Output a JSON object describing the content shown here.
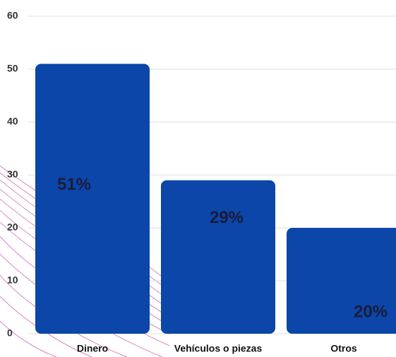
{
  "chart_data": {
    "type": "bar",
    "categories": [
      "Dinero",
      "Vehículos o piezas",
      "Otros"
    ],
    "values": [
      51,
      29,
      20
    ],
    "value_labels": [
      "51%",
      "29%",
      "20%"
    ],
    "color": "#0b46a8",
    "ylim": [
      0,
      60
    ],
    "yticks": [
      0,
      10,
      20,
      30,
      40,
      50,
      60
    ],
    "grid": true
  }
}
